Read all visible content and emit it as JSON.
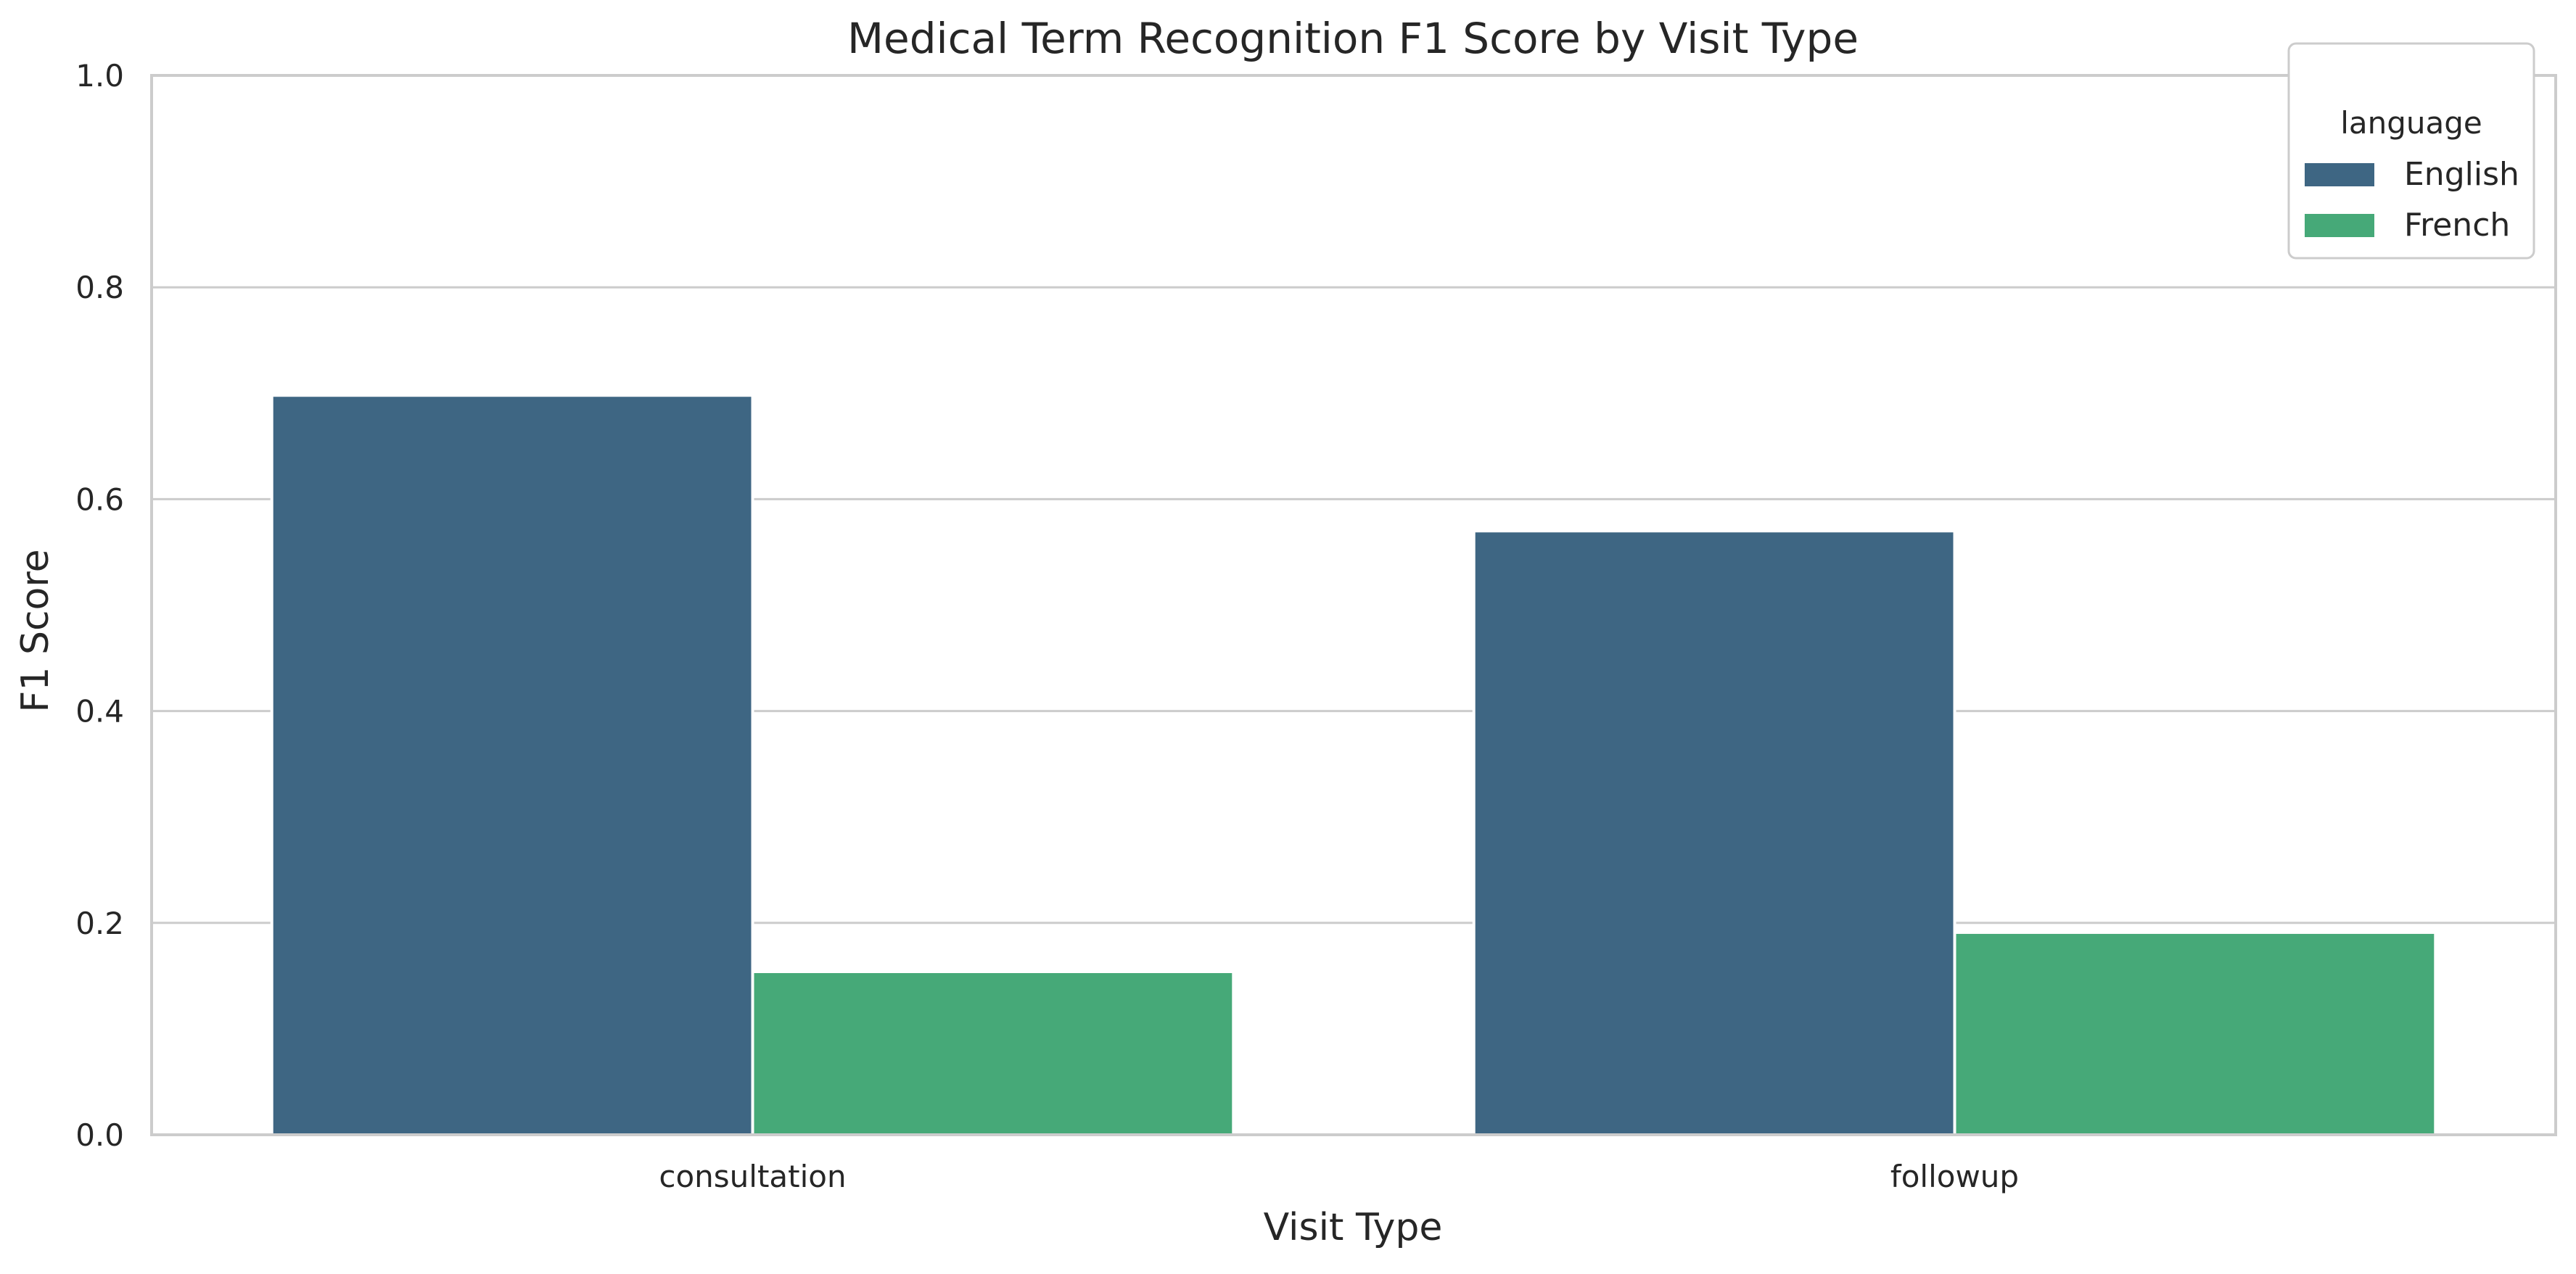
{
  "chart_data": {
    "type": "bar",
    "title": "Medical Term Recognition F1 Score by Visit Type",
    "xlabel": "Visit Type",
    "ylabel": "F1 Score",
    "categories": [
      "consultation",
      "followup"
    ],
    "series": [
      {
        "name": "English",
        "color": "#3e6683",
        "values": [
          0.698,
          0.57
        ]
      },
      {
        "name": "French",
        "color": "#46a978",
        "values": [
          0.154,
          0.191
        ]
      }
    ],
    "ylim": [
      0,
      1.0
    ],
    "yticks": [
      "0.0",
      "0.2",
      "0.4",
      "0.6",
      "0.8",
      "1.0"
    ],
    "grid": "horizontal",
    "legend": {
      "title": "language",
      "placement": "top-right"
    }
  }
}
